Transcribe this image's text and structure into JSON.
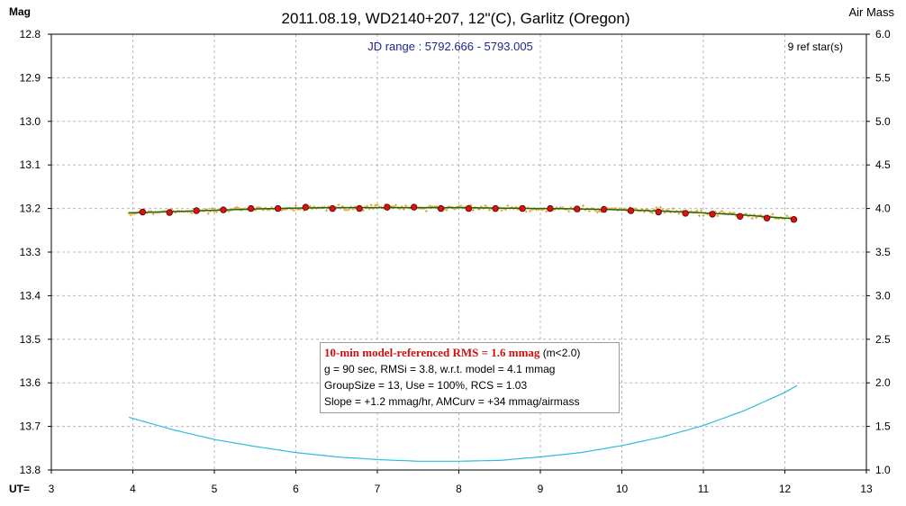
{
  "chart_data": {
    "type": "scatter",
    "title": "2011.08.19, WD2140+207, 12\"(C), Garlitz (Oregon)",
    "left_axis_label": "Mag",
    "right_axis_label": "Air Mass",
    "x_axis_label": "UT=",
    "jd_range": "JD range : 5792.666 - 5793.005",
    "ref_stars": "9 ref star(s)",
    "xlim": [
      3,
      13
    ],
    "ylim_mag": [
      13.8,
      12.8
    ],
    "ylim_airmass": [
      1.0,
      6.0
    ],
    "x_ticks": [
      "3",
      "4",
      "5",
      "6",
      "7",
      "8",
      "9",
      "10",
      "11",
      "12",
      "13"
    ],
    "y_ticks_mag": [
      "12.8",
      "12.9",
      "13.0",
      "13.1",
      "13.2",
      "13.3",
      "13.4",
      "13.5",
      "13.6",
      "13.7",
      "13.8"
    ],
    "y_ticks_airmass": [
      "6.0",
      "5.5",
      "5.0",
      "4.5",
      "4.0",
      "3.5",
      "3.0",
      "2.5",
      "2.0",
      "1.5",
      "1.0"
    ],
    "grid": true,
    "series": [
      {
        "kind": "group_means",
        "x": [
          4.12,
          4.45,
          4.78,
          5.11,
          5.45,
          5.78,
          6.12,
          6.45,
          6.78,
          7.12,
          7.45,
          7.78,
          8.12,
          8.45,
          8.78,
          9.12,
          9.45,
          9.78,
          10.11,
          10.45,
          10.78,
          11.11,
          11.45,
          11.78,
          12.11
        ],
        "y": [
          13.208,
          13.209,
          13.205,
          13.203,
          13.2,
          13.2,
          13.197,
          13.2,
          13.2,
          13.197,
          13.197,
          13.2,
          13.2,
          13.2,
          13.2,
          13.2,
          13.201,
          13.202,
          13.205,
          13.208,
          13.211,
          13.213,
          13.218,
          13.222,
          13.225
        ]
      },
      {
        "kind": "model_fit",
        "x": [
          3.95,
          4.5,
          5.0,
          5.5,
          6.0,
          6.5,
          7.0,
          7.5,
          8.0,
          8.5,
          9.0,
          9.5,
          10.0,
          10.5,
          11.0,
          11.5,
          12.15
        ],
        "y": [
          13.21,
          13.207,
          13.204,
          13.201,
          13.199,
          13.198,
          13.198,
          13.198,
          13.198,
          13.199,
          13.2,
          13.201,
          13.203,
          13.206,
          13.21,
          13.215,
          13.224
        ]
      },
      {
        "kind": "airmass",
        "x": [
          3.95,
          4.5,
          5.0,
          5.5,
          6.0,
          6.5,
          7.0,
          7.5,
          8.0,
          8.5,
          9.0,
          9.5,
          10.0,
          10.5,
          11.0,
          11.5,
          12.0,
          12.15
        ],
        "y": [
          1.605,
          1.46,
          1.35,
          1.27,
          1.2,
          1.15,
          1.12,
          1.1,
          1.1,
          1.11,
          1.15,
          1.2,
          1.28,
          1.38,
          1.51,
          1.68,
          1.89,
          1.97
        ]
      }
    ],
    "stats": {
      "line1_main": "10-min model-referenced RMS = 1.6 mmag",
      "line1_cond": "(m<2.0)",
      "line2": "g = 90 sec, RMSi = 3.8, w.r.t. model = 4.1 mmag",
      "line3": "GroupSize = 13, Use = 100%, RCS = 1.03",
      "line4": "Slope = +1.2 mmag/hr, AMCurv = +34 mmag/airmass"
    },
    "colors": {
      "individual_points": "#e8a020",
      "fit_line": "#1a6a1a",
      "group_marker": "#dd1111",
      "airmass_curve": "#33bbdd",
      "grid": "#b8b8b8"
    }
  }
}
